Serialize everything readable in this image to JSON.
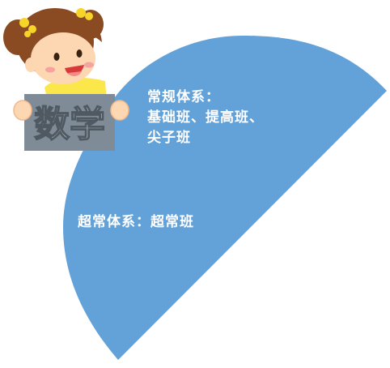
{
  "sign": {
    "label": "数学"
  },
  "regular_system": {
    "title": "常规体系：",
    "line1": "基础班、提高班、",
    "line2": "尖子班"
  },
  "advanced_system": {
    "text": "超常体系：超常班"
  },
  "colors": {
    "fan": "#62a2d8",
    "sign_board": "#7f8c97",
    "hair": "#8a4a22",
    "skin": "#fcd7b2",
    "shirt": "#fbe74a",
    "bow": "#f7d42a"
  }
}
